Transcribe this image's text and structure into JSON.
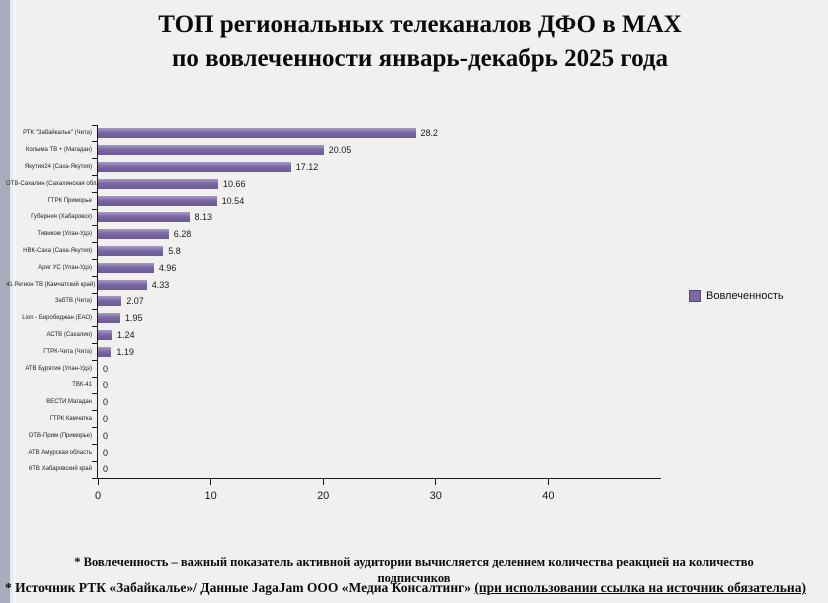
{
  "window": {
    "title_line1": "ТОП региональных телеканалов ДФО в MAX",
    "title_line2": "по вовлеченности январь-декабрь 2025 года"
  },
  "chart_data": {
    "type": "bar",
    "orientation": "horizontal",
    "title": "ТОП региональных телеканалов ДФО в MAX по вовлеченности январь-декабрь 2025 года",
    "categories": [
      "РТК \"Забайкалье\" (Чита)",
      "Колыма ТВ + (Магадан)",
      "Якутия24 (Саха-Якутия)",
      "ОТВ-Сахалин (Сахалинская область)",
      "ГТРК Приморье",
      "Губерния (Хабаровск)",
      "Тивиком (Улан-Удэ)",
      "НВК-Саха (Саха-Якутия)",
      "Ариг УС (Улан-Удэ)",
      "41 Регион ТВ (Камчатский край)",
      "ЗабТВ (Чита)",
      "Lion - Биробиджан (ЕАО)",
      "АСТВ (Сахалин)",
      "ГТРК-Чита (Чита)",
      "АТВ Бурятия (Улан-Удэ)",
      "ТВК-41",
      "ВЕСТИ Магадан",
      "ГТРК Камчатка",
      "ОТВ-Прим (Приморье)",
      "АТВ Амурская область",
      "6ТВ Хабаровский край"
    ],
    "values": [
      28.2,
      20.05,
      17.12,
      10.66,
      10.54,
      8.13,
      6.28,
      5.8,
      4.96,
      4.33,
      2.07,
      1.95,
      1.24,
      1.19,
      0,
      0,
      0,
      0,
      0,
      0,
      0
    ],
    "value_labels": [
      "28.2",
      "20.05",
      "17.12",
      "10.66",
      "10.54",
      "8.13",
      "6.28",
      "5.8",
      "4.96",
      "4.33",
      "2.07",
      "1.95",
      "1.24",
      "1.19",
      "0",
      "0",
      "0",
      "0",
      "0",
      "0",
      "0"
    ],
    "xlim": [
      0,
      50
    ],
    "xticks": [
      0,
      10,
      20,
      30,
      40
    ],
    "grid": false,
    "legend": {
      "label": "Вовлеченность",
      "position": "right"
    },
    "bar_color": "#7b68a5"
  },
  "footnotes": {
    "note1_line1": "* Вовлеченность –  важный показатель активной аудитории вычисляется делением количества реакцией на количество",
    "note1_line2": "подписчиков",
    "note2_part1": "* Источник РТК «Забайкалье»/ Данные JagaJam ООО «Медиа Консалтинг» ",
    "note2_part2_underlined": "(при использовании ссылка на источник обязательна)"
  }
}
